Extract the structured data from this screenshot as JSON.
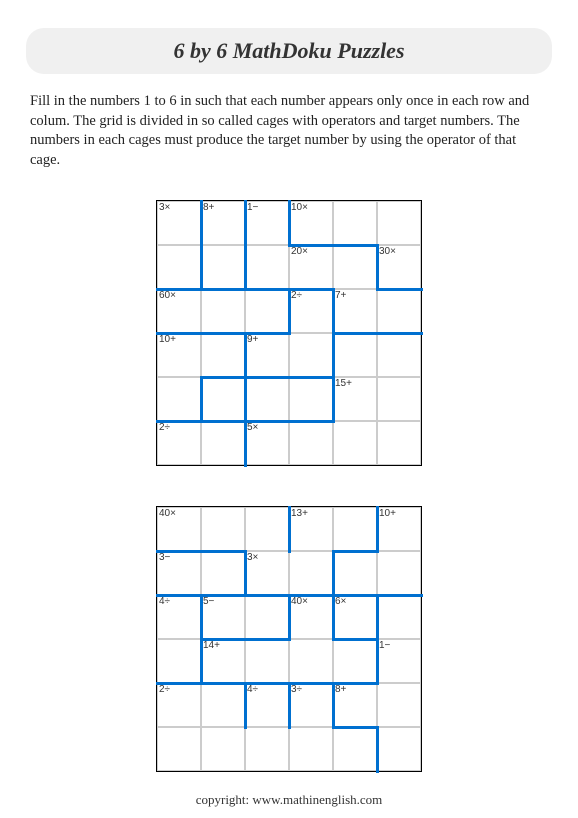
{
  "title": "6 by 6 MathDoku Puzzles",
  "instructions": "Fill in the numbers 1 to 6 in such that each number appears only once in each row and colum. The grid is divided in so called cages with operators and target numbers. The numbers in each cages must produce the target number by using the operator of that cage.",
  "copyright": "copyright:    www.mathinenglish.com",
  "cell_size": 44,
  "grid_size": 6,
  "cage_line_color": "#0070d0",
  "cage_line_width": 3,
  "puzzle1": {
    "clues": [
      {
        "r": 0,
        "c": 0,
        "t": "3×"
      },
      {
        "r": 0,
        "c": 1,
        "t": "8+"
      },
      {
        "r": 0,
        "c": 2,
        "t": "1−"
      },
      {
        "r": 0,
        "c": 3,
        "t": "10×"
      },
      {
        "r": 1,
        "c": 3,
        "t": "20×"
      },
      {
        "r": 1,
        "c": 5,
        "t": "30×"
      },
      {
        "r": 2,
        "c": 0,
        "t": "60×"
      },
      {
        "r": 2,
        "c": 3,
        "t": "2÷"
      },
      {
        "r": 2,
        "c": 4,
        "t": "7+"
      },
      {
        "r": 3,
        "c": 0,
        "t": "10+"
      },
      {
        "r": 3,
        "c": 2,
        "t": "9+"
      },
      {
        "r": 4,
        "c": 4,
        "t": "15+"
      },
      {
        "r": 5,
        "c": 0,
        "t": "2÷"
      },
      {
        "r": 5,
        "c": 2,
        "t": "5×"
      }
    ],
    "v_lines": [
      {
        "r": 0,
        "c": 1,
        "len": 2
      },
      {
        "r": 0,
        "c": 2,
        "len": 2
      },
      {
        "r": 0,
        "c": 3,
        "len": 1
      },
      {
        "r": 1,
        "c": 5,
        "len": 1
      },
      {
        "r": 2,
        "c": 3,
        "len": 1
      },
      {
        "r": 2,
        "c": 4,
        "len": 2
      },
      {
        "r": 3,
        "c": 2,
        "len": 2
      },
      {
        "r": 4,
        "c": 1,
        "len": 1
      },
      {
        "r": 4,
        "c": 4,
        "len": 1
      },
      {
        "r": 5,
        "c": 2,
        "len": 1
      }
    ],
    "h_lines": [
      {
        "r": 1,
        "c": 3,
        "len": 2
      },
      {
        "r": 2,
        "c": 0,
        "len": 4
      },
      {
        "r": 2,
        "c": 5,
        "len": 1
      },
      {
        "r": 3,
        "c": 0,
        "len": 3
      },
      {
        "r": 3,
        "c": 4,
        "len": 2
      },
      {
        "r": 4,
        "c": 1,
        "len": 3
      },
      {
        "r": 5,
        "c": 0,
        "len": 4
      }
    ]
  },
  "puzzle2": {
    "clues": [
      {
        "r": 0,
        "c": 0,
        "t": "40×"
      },
      {
        "r": 0,
        "c": 3,
        "t": "13+"
      },
      {
        "r": 0,
        "c": 5,
        "t": "10+"
      },
      {
        "r": 1,
        "c": 0,
        "t": "3−"
      },
      {
        "r": 1,
        "c": 2,
        "t": "3×"
      },
      {
        "r": 2,
        "c": 0,
        "t": "4÷"
      },
      {
        "r": 2,
        "c": 1,
        "t": "5−"
      },
      {
        "r": 2,
        "c": 3,
        "t": "40×"
      },
      {
        "r": 2,
        "c": 4,
        "t": "6×"
      },
      {
        "r": 3,
        "c": 1,
        "t": "14+"
      },
      {
        "r": 3,
        "c": 5,
        "t": "1−"
      },
      {
        "r": 4,
        "c": 0,
        "t": "2÷"
      },
      {
        "r": 4,
        "c": 2,
        "t": "4÷"
      },
      {
        "r": 4,
        "c": 3,
        "t": "3÷"
      },
      {
        "r": 4,
        "c": 4,
        "t": "8+"
      }
    ],
    "v_lines": [
      {
        "r": 0,
        "c": 3,
        "len": 1
      },
      {
        "r": 0,
        "c": 5,
        "len": 1
      },
      {
        "r": 1,
        "c": 2,
        "len": 1
      },
      {
        "r": 1,
        "c": 4,
        "len": 1
      },
      {
        "r": 2,
        "c": 1,
        "len": 1
      },
      {
        "r": 2,
        "c": 3,
        "len": 1
      },
      {
        "r": 2,
        "c": 4,
        "len": 1
      },
      {
        "r": 2,
        "c": 5,
        "len": 1
      },
      {
        "r": 3,
        "c": 1,
        "len": 1
      },
      {
        "r": 3,
        "c": 5,
        "len": 1
      },
      {
        "r": 4,
        "c": 2,
        "len": 1
      },
      {
        "r": 4,
        "c": 3,
        "len": 1
      },
      {
        "r": 4,
        "c": 4,
        "len": 1
      },
      {
        "r": 5,
        "c": 5,
        "len": 1
      }
    ],
    "h_lines": [
      {
        "r": 1,
        "c": 0,
        "len": 2
      },
      {
        "r": 1,
        "c": 4,
        "len": 1
      },
      {
        "r": 2,
        "c": 0,
        "len": 6
      },
      {
        "r": 3,
        "c": 1,
        "len": 2
      },
      {
        "r": 3,
        "c": 4,
        "len": 1
      },
      {
        "r": 4,
        "c": 0,
        "len": 5
      },
      {
        "r": 5,
        "c": 4,
        "len": 1
      }
    ]
  }
}
